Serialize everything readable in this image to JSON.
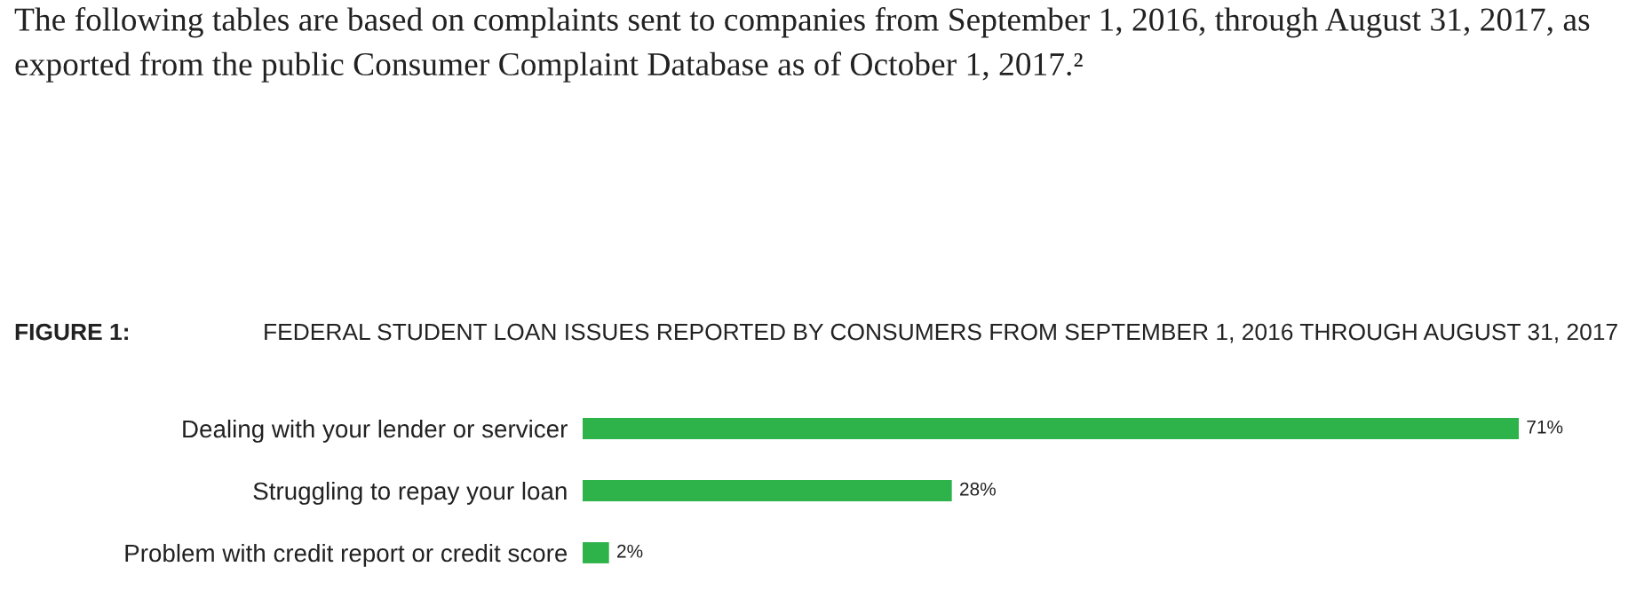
{
  "chart_data": {
    "type": "bar",
    "orientation": "horizontal",
    "title": "FEDERAL STUDENT LOAN ISSUES REPORTED BY CONSUMERS FROM SEPTEMBER 1, 2016 THROUGH AUGUST 31, 2017",
    "annotations": [
      "The following tables are based on complaints sent to companies from September 1, 2016, through August 31, 2017, as exported from the public Consumer Complaint Database as of October 1, 2017.²",
      "FIGURE 1:"
    ],
    "categories": [
      "Dealing with your lender or servicer",
      "Struggling to repay your loan",
      "Problem with credit report or credit score"
    ],
    "values": [
      71,
      28,
      2
    ],
    "value_labels": [
      "71%",
      "28%",
      "2%"
    ],
    "color": "#2db34a",
    "xlim": [
      0,
      71
    ],
    "tick_labels": "y",
    "grid": false,
    "legend": false
  }
}
